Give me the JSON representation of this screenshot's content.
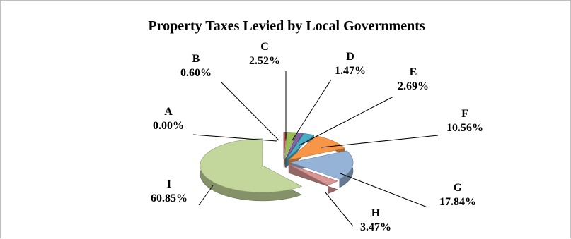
{
  "chart_data": {
    "type": "pie",
    "variant": "3d-exploded",
    "title": "Property Taxes Levied by Local Governments",
    "categories": [
      "A",
      "B",
      "C",
      "D",
      "E",
      "F",
      "G",
      "H",
      "I"
    ],
    "values": [
      0.0,
      0.6,
      2.52,
      1.47,
      2.69,
      10.56,
      17.84,
      3.47,
      60.85
    ],
    "value_labels": [
      "0.00%",
      "0.60%",
      "2.52%",
      "1.47%",
      "2.69%",
      "10.56%",
      "17.84%",
      "3.47%",
      "60.85%"
    ],
    "colors": [
      "#4f81bd",
      "#c0504d",
      "#9bbb59",
      "#8064a2",
      "#4bacc6",
      "#f79646",
      "#95b3d7",
      "#d99694",
      "#c3d69b"
    ],
    "legend": false
  }
}
